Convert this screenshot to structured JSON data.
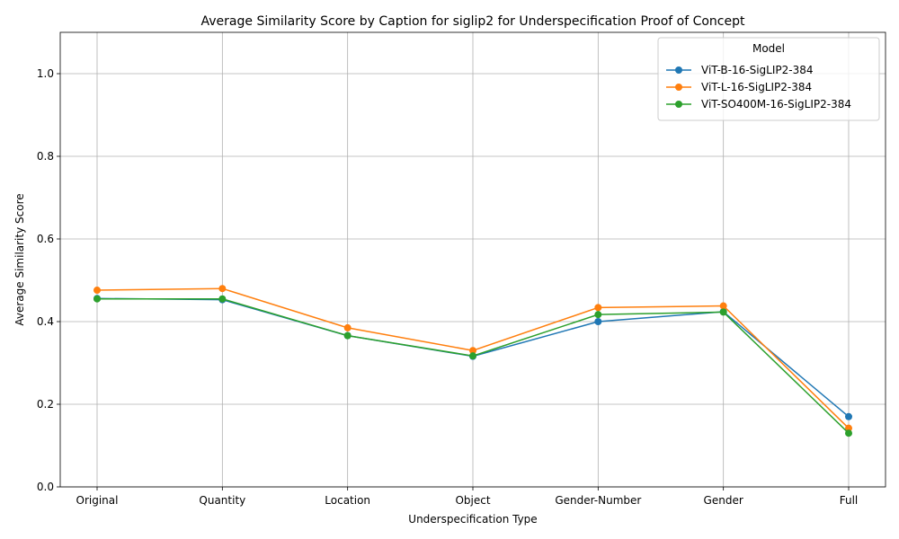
{
  "chart_data": {
    "type": "line",
    "title": "Average Similarity Score by Caption for siglip2 for Underspecification Proof of Concept",
    "xlabel": "Underspecification Type",
    "ylabel": "Average Similarity Score",
    "ylim": [
      0.0,
      1.1
    ],
    "yticks": [
      "0.0",
      "0.2",
      "0.4",
      "0.6",
      "0.8",
      "1.0"
    ],
    "grid": true,
    "legend_title": "Model",
    "legend_placement": "top-right",
    "categories": [
      "Original",
      "Quantity",
      "Location",
      "Object",
      "Gender-Number",
      "Gender",
      "Full"
    ],
    "series": [
      {
        "name": "ViT-B-16-SigLIP2-384",
        "color": "#1f77b4",
        "values": [
          0.456,
          0.453,
          0.366,
          0.316,
          0.4,
          0.424,
          0.17
        ]
      },
      {
        "name": "ViT-L-16-SigLIP2-384",
        "color": "#ff7f0e",
        "values": [
          0.476,
          0.48,
          0.385,
          0.33,
          0.434,
          0.438,
          0.142
        ]
      },
      {
        "name": "ViT-SO400M-16-SigLIP2-384",
        "color": "#2ca02c",
        "values": [
          0.455,
          0.455,
          0.366,
          0.317,
          0.417,
          0.423,
          0.13
        ]
      }
    ]
  }
}
